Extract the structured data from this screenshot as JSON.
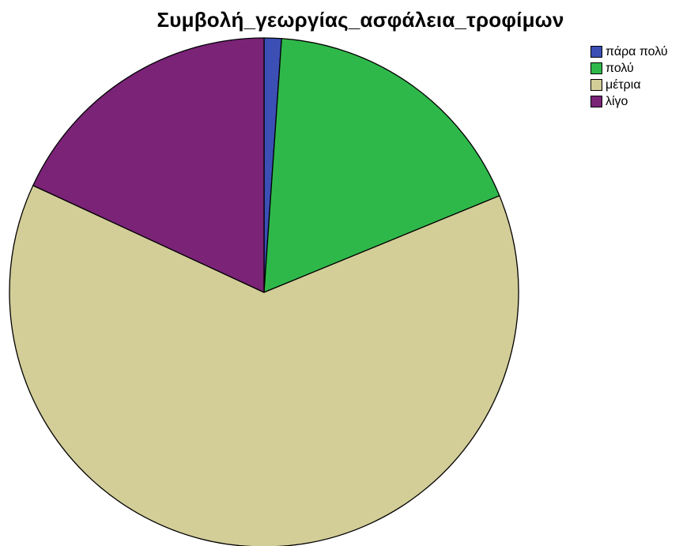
{
  "chart_data": {
    "type": "pie",
    "title": "Συμβολή_γεωργίας_ασφάλεια_τροφίμων",
    "categories": [
      "πάρα πολύ",
      "πολύ",
      "μέτρια",
      "λίγο"
    ],
    "values": [
      1.1,
      17.7,
      63.1,
      18.1
    ],
    "colors": [
      "#3b4fb5",
      "#2fb84a",
      "#d3cd98",
      "#7a2377"
    ],
    "legend_position": "top-right",
    "start_angle_deg": 0,
    "direction": "clockwise"
  }
}
